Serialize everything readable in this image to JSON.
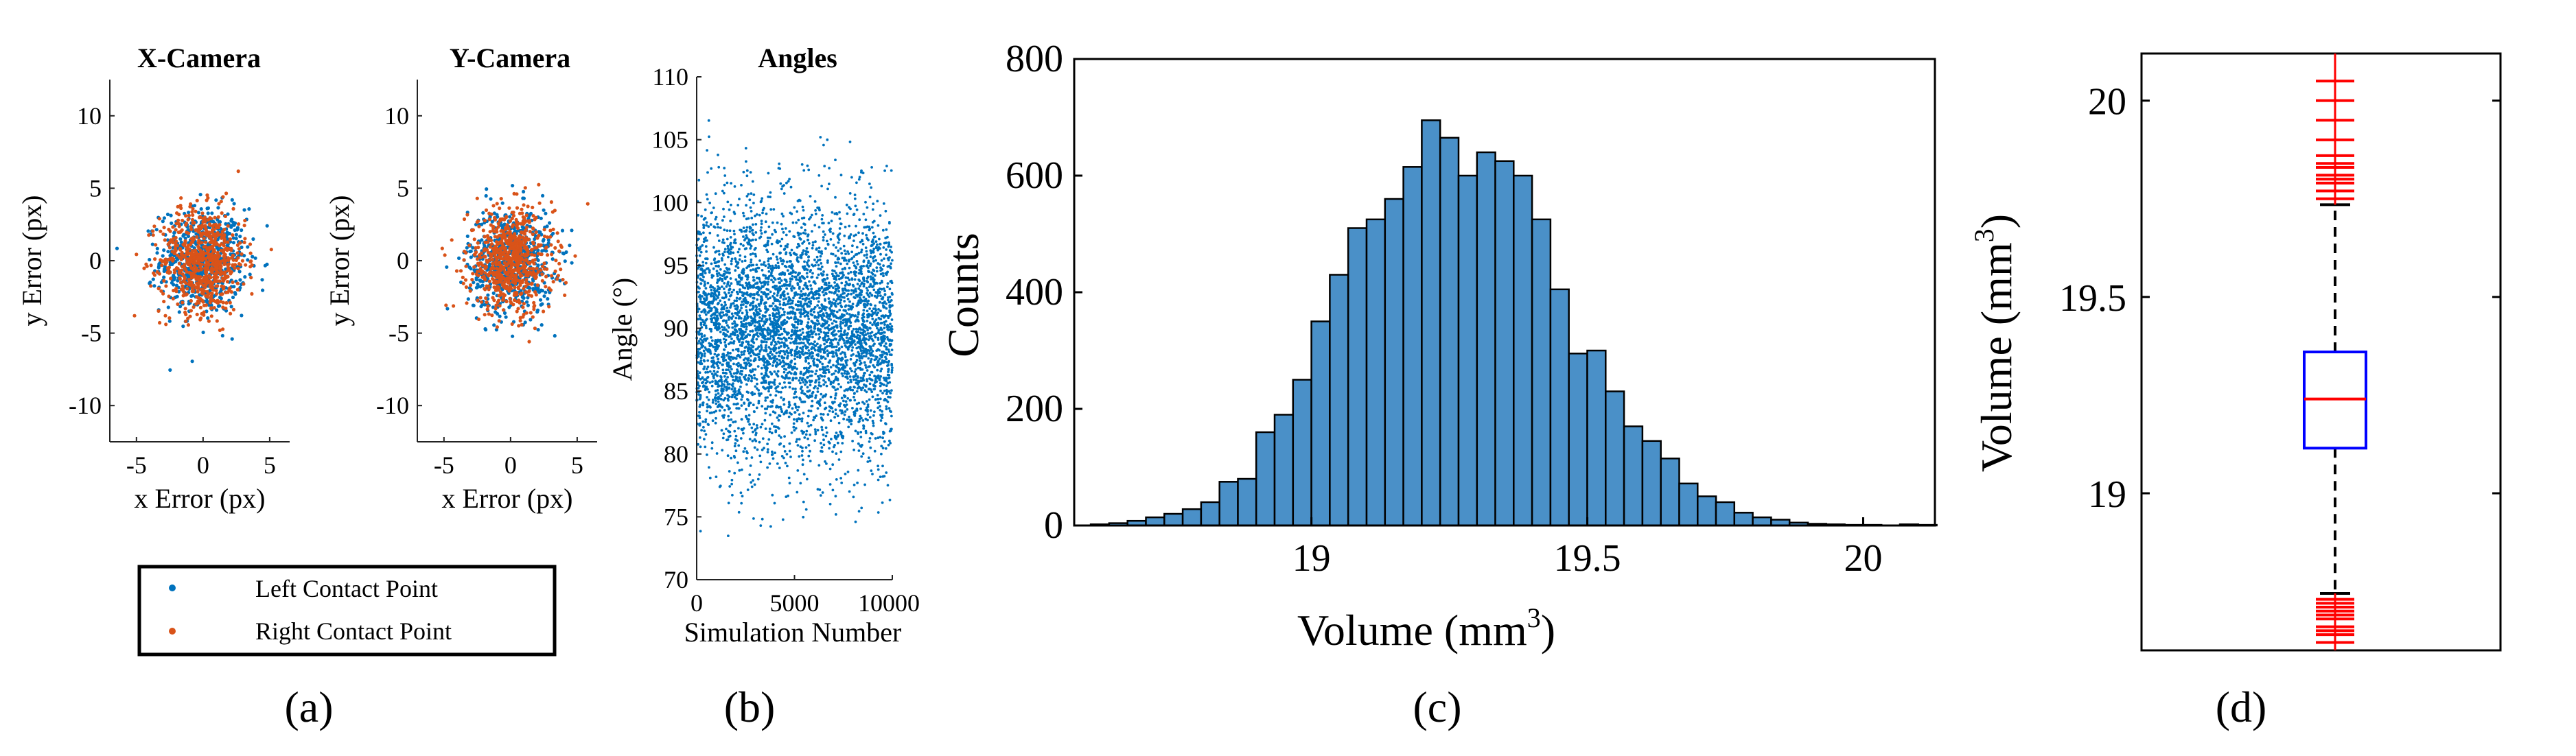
{
  "colors": {
    "left": "#0072BD",
    "right": "#D95319",
    "hist_fill": "#4A90C8",
    "box": "#0000FF",
    "outlier": "#FF0000"
  },
  "labels": {
    "a": "(a)",
    "b": "(b)",
    "c": "(c)",
    "d": "(d)"
  },
  "legend": {
    "left": "Left Contact Point",
    "right": "Right Contact Point"
  },
  "chart_data": [
    {
      "id": "x_camera",
      "type": "scatter",
      "title": "X-Camera",
      "xlabel": "x Error (px)",
      "ylabel": "y Error (px)",
      "xlim": [
        -7,
        6.5
      ],
      "ylim": [
        -12.5,
        12.5
      ],
      "xticks": [
        -5,
        0,
        5
      ],
      "yticks": [
        -10,
        -5,
        0,
        5,
        10
      ],
      "series": [
        {
          "name": "Left Contact Point",
          "distribution": "normal",
          "n": 700,
          "mean": [
            0,
            0
          ],
          "std": [
            1.6,
            1.8
          ]
        },
        {
          "name": "Right Contact Point",
          "distribution": "normal",
          "n": 700,
          "mean": [
            0,
            0
          ],
          "std": [
            1.6,
            1.8
          ]
        }
      ]
    },
    {
      "id": "y_camera",
      "type": "scatter",
      "title": "Y-Camera",
      "xlabel": "x Error (px)",
      "ylabel": "y Error (px)",
      "xlim": [
        -7,
        6.5
      ],
      "ylim": [
        -12.5,
        12.5
      ],
      "xticks": [
        -5,
        0,
        5
      ],
      "yticks": [
        -10,
        -5,
        0,
        5,
        10
      ],
      "series": [
        {
          "name": "Left Contact Point",
          "distribution": "normal",
          "n": 700,
          "mean": [
            0,
            0
          ],
          "std": [
            1.6,
            1.8
          ]
        },
        {
          "name": "Right Contact Point",
          "distribution": "normal",
          "n": 700,
          "mean": [
            0,
            0
          ],
          "std": [
            1.6,
            1.8
          ]
        }
      ]
    },
    {
      "id": "angles",
      "type": "scatter",
      "title": "Angles",
      "xlabel": "Simulation Number",
      "ylabel": "Angle (°)",
      "xlim": [
        0,
        10000
      ],
      "ylim": [
        70,
        110
      ],
      "xticks": [
        0,
        5000,
        10000
      ],
      "yticks": [
        70,
        75,
        80,
        85,
        90,
        95,
        100,
        105,
        110
      ],
      "series": [
        {
          "name": "Angle",
          "distribution": "normal",
          "n": 4500,
          "mean": 90,
          "std": 5
        }
      ]
    },
    {
      "id": "volume_hist",
      "type": "bar",
      "title": "",
      "xlabel": "Volume (mm",
      "xlabel_sup": "3",
      "xlabel_close": ")",
      "ylabel": "Counts",
      "xlim": [
        18.57,
        20.13
      ],
      "ylim": [
        0,
        800
      ],
      "xticks": [
        19,
        19.5,
        20
      ],
      "yticks": [
        0,
        200,
        400,
        600,
        800
      ],
      "bin_start": 18.6,
      "bin_width": 0.03333,
      "values": [
        2,
        4,
        8,
        14,
        20,
        28,
        40,
        75,
        80,
        160,
        190,
        250,
        350,
        430,
        510,
        525,
        560,
        615,
        695,
        665,
        600,
        640,
        625,
        600,
        525,
        405,
        295,
        300,
        230,
        170,
        145,
        115,
        72,
        50,
        40,
        22,
        14,
        10,
        5,
        3,
        2,
        1,
        1,
        0,
        2,
        1
      ]
    },
    {
      "id": "volume_box",
      "type": "box",
      "title": "",
      "ylabel": "Volume (mm",
      "ylabel_sup": "3",
      "ylabel_close": ")",
      "ylim": [
        18.6,
        20.12
      ],
      "yticks": [
        19,
        19.5,
        20
      ],
      "median": 19.24,
      "q1": 19.115,
      "q3": 19.36,
      "whisker_low": 18.745,
      "whisker_high": 19.735,
      "outliers_high": [
        19.75,
        19.77,
        19.79,
        19.8,
        19.81,
        19.83,
        19.84,
        19.86,
        19.9,
        19.95,
        20.0,
        20.05
      ],
      "outliers_low": [
        18.62,
        18.64,
        18.65,
        18.66,
        18.68,
        18.69,
        18.7,
        18.71,
        18.72,
        18.73
      ]
    }
  ]
}
